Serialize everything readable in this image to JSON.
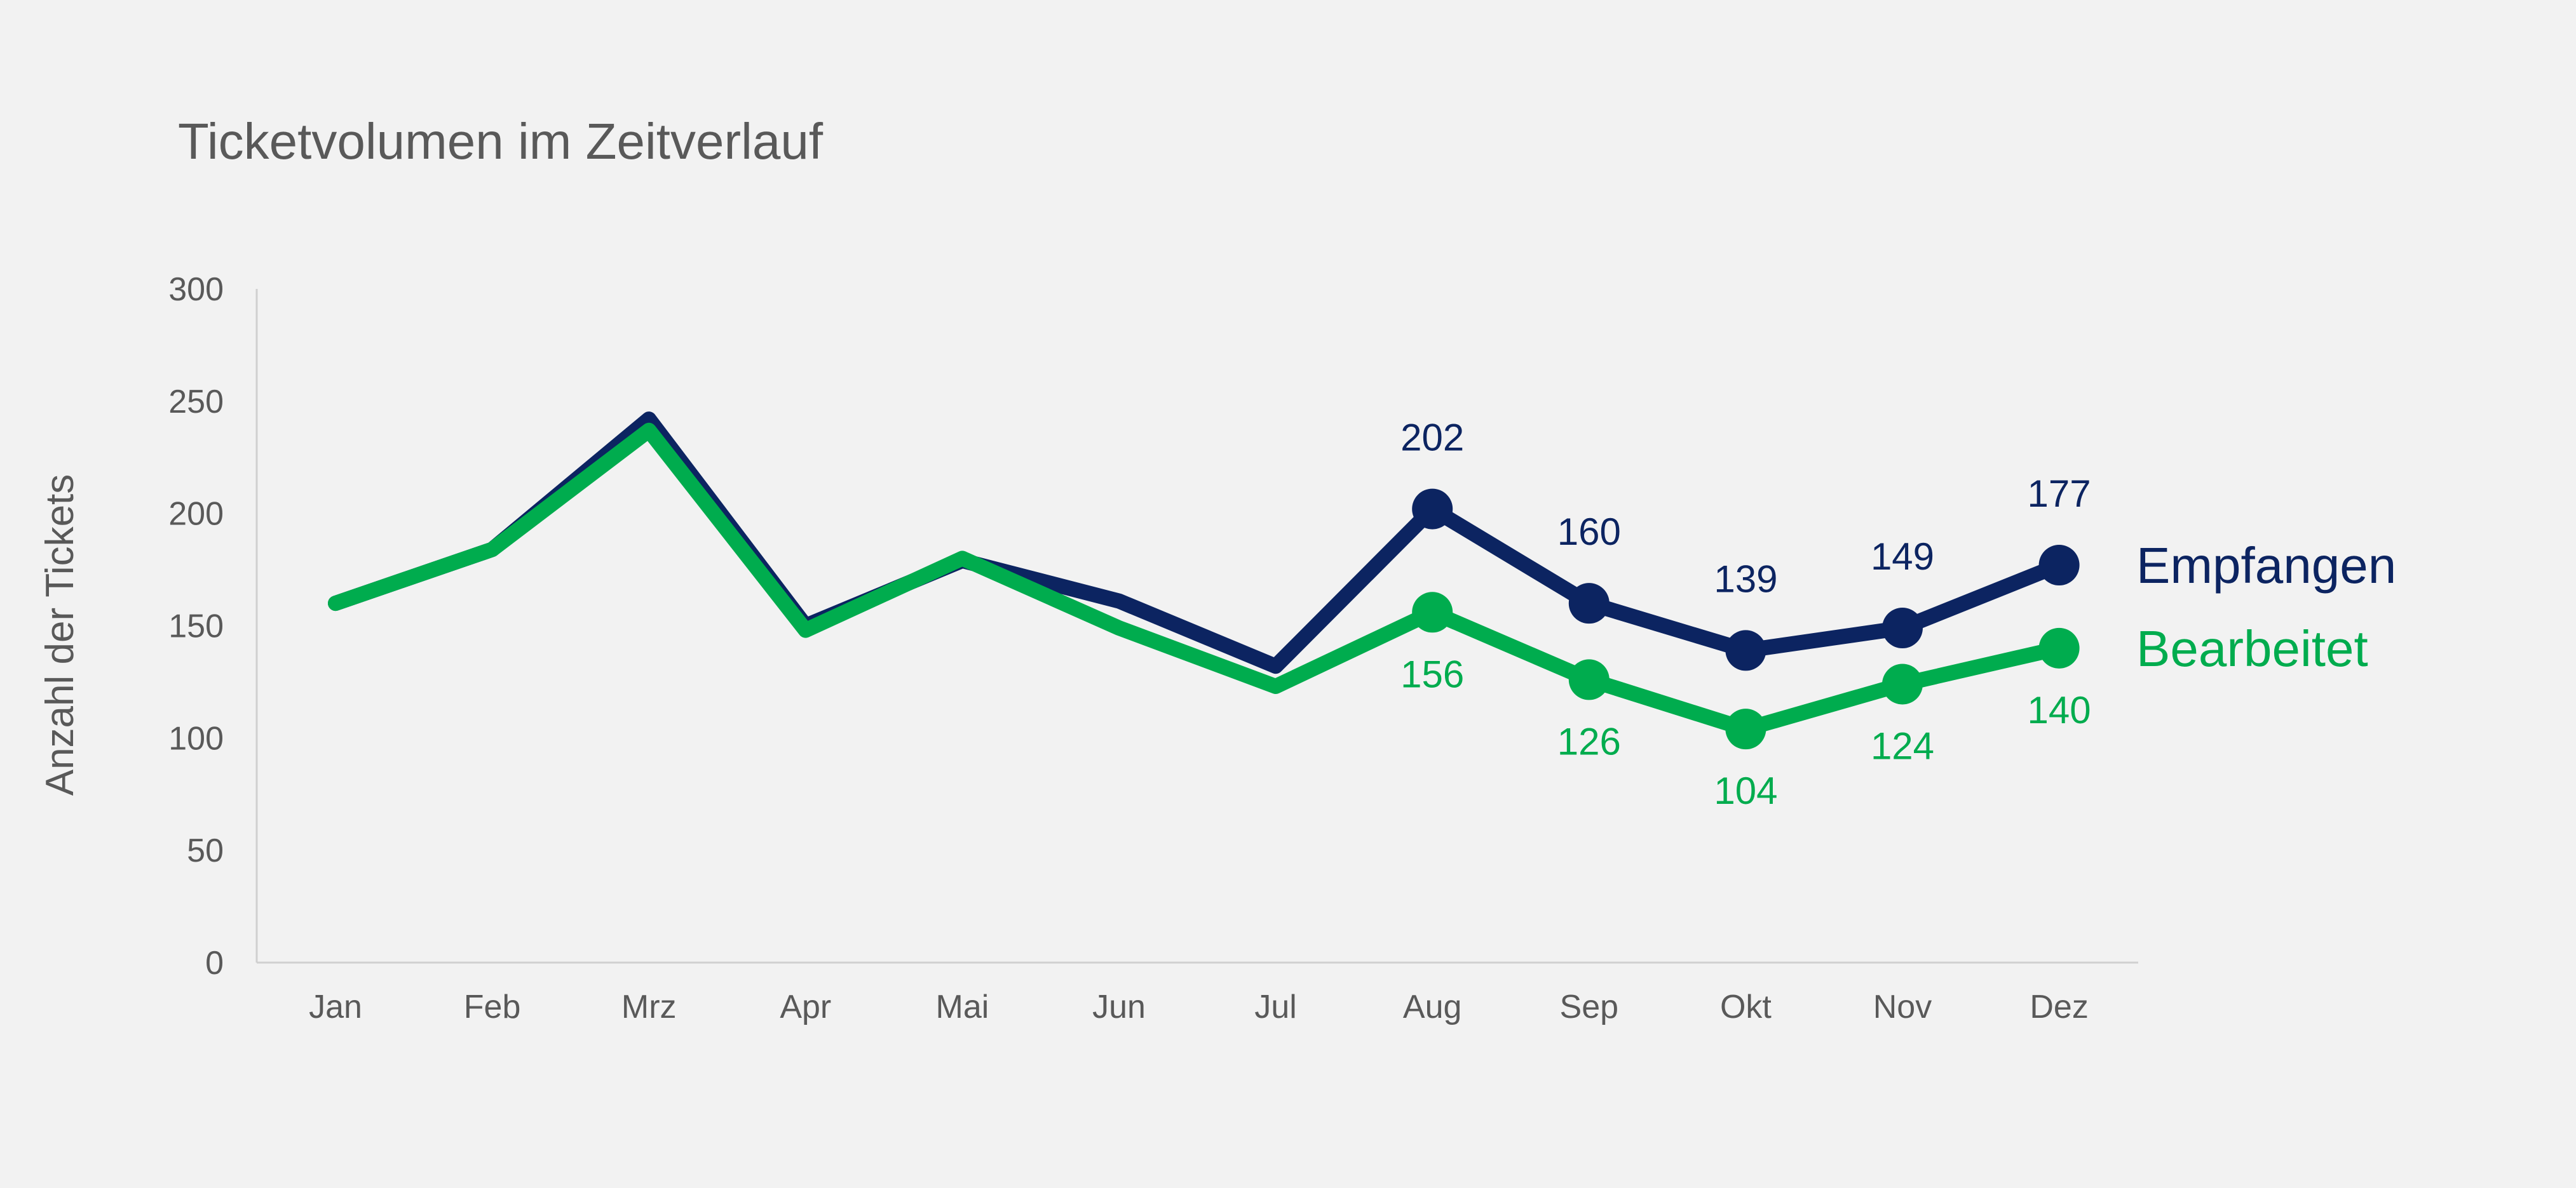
{
  "chart_data": {
    "type": "line",
    "title": "Ticketvolumen im Zeitverlauf",
    "xlabel": "",
    "ylabel": "Anzahl der Tickets",
    "categories": [
      "Jan",
      "Feb",
      "Mrz",
      "Apr",
      "Mai",
      "Jun",
      "Jul",
      "Aug",
      "Sep",
      "Okt",
      "Nov",
      "Dez"
    ],
    "ylim": [
      0,
      300
    ],
    "yticks": [
      0,
      50,
      100,
      150,
      200,
      250,
      300
    ],
    "grid": false,
    "legend_placement": "right",
    "series": [
      {
        "name": "Empfangen",
        "color": "#0c2461",
        "values": [
          160,
          184,
          242,
          150,
          179,
          161,
          132,
          202,
          160,
          139,
          149,
          177
        ],
        "labels": [
          null,
          null,
          null,
          null,
          null,
          null,
          null,
          "202",
          "160",
          "139",
          "149",
          "177"
        ],
        "label_position": "above"
      },
      {
        "name": "Bearbeitet",
        "color": "#00ac4e",
        "values": [
          160,
          184,
          237,
          148,
          180,
          149,
          123,
          156,
          126,
          104,
          124,
          140
        ],
        "labels": [
          null,
          null,
          null,
          null,
          null,
          null,
          null,
          "156",
          "126",
          "104",
          "124",
          "140"
        ],
        "label_position": "below"
      }
    ]
  }
}
